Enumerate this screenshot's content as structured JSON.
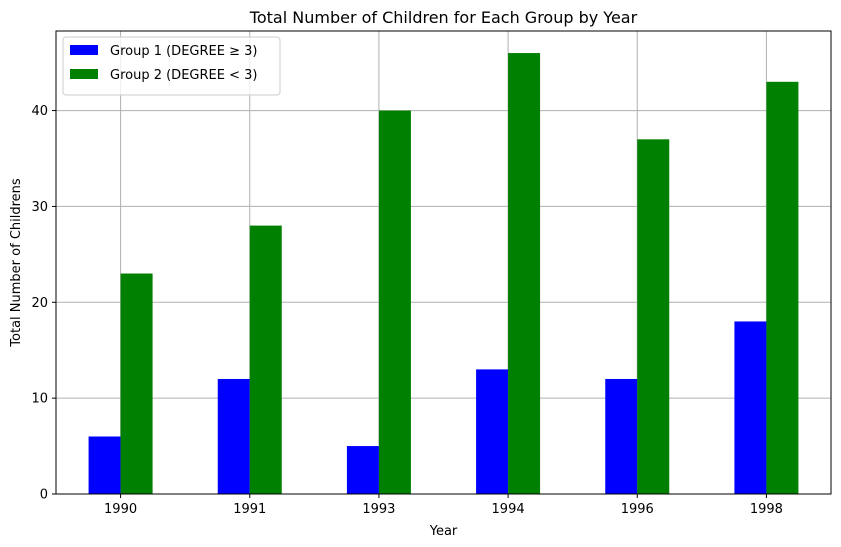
{
  "chart_data": {
    "type": "bar",
    "title": "Total Number of Children for Each Group by Year",
    "xlabel": "Year",
    "ylabel": "Total Number of Childrens",
    "categories": [
      "1990",
      "1991",
      "1993",
      "1994",
      "1996",
      "1998"
    ],
    "series": [
      {
        "name": "Group 1 (DEGREE ≥ 3)",
        "color": "#0000ff",
        "values": [
          6,
          12,
          5,
          13,
          12,
          18
        ]
      },
      {
        "name": "Group 2 (DEGREE < 3)",
        "color": "#008000",
        "values": [
          23,
          28,
          40,
          46,
          37,
          43
        ]
      }
    ],
    "yticks": [
      0,
      10,
      20,
      30,
      40
    ],
    "ylim": [
      0,
      48.3
    ],
    "grid": true,
    "legend": "top-left"
  }
}
